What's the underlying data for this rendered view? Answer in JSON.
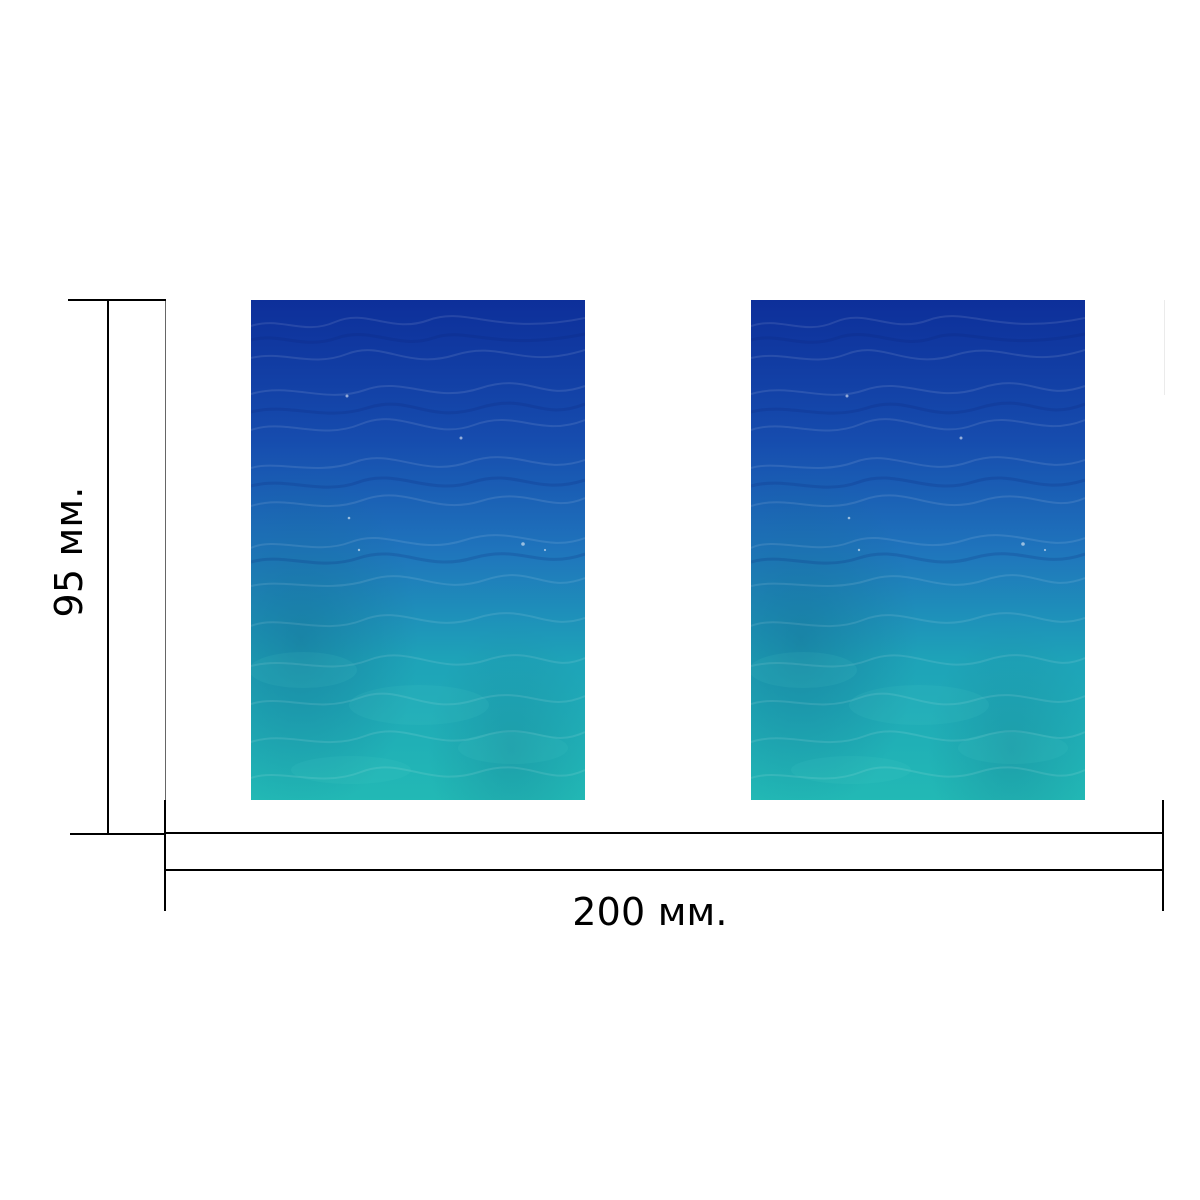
{
  "diagram": {
    "height_label": "95 мм.",
    "width_label": "200 мм.",
    "panels": [
      {
        "name": "left-water-panel",
        "image": "sea-water-texture",
        "colors": {
          "top": "#123da6",
          "middle": "#1f73bd",
          "bottom": "#20b8b5"
        }
      },
      {
        "name": "right-water-panel",
        "image": "sea-water-texture",
        "colors": {
          "top": "#123da6",
          "middle": "#1f73bd",
          "bottom": "#20b8b5"
        }
      }
    ],
    "line_color": "#000000",
    "background": "#ffffff"
  }
}
